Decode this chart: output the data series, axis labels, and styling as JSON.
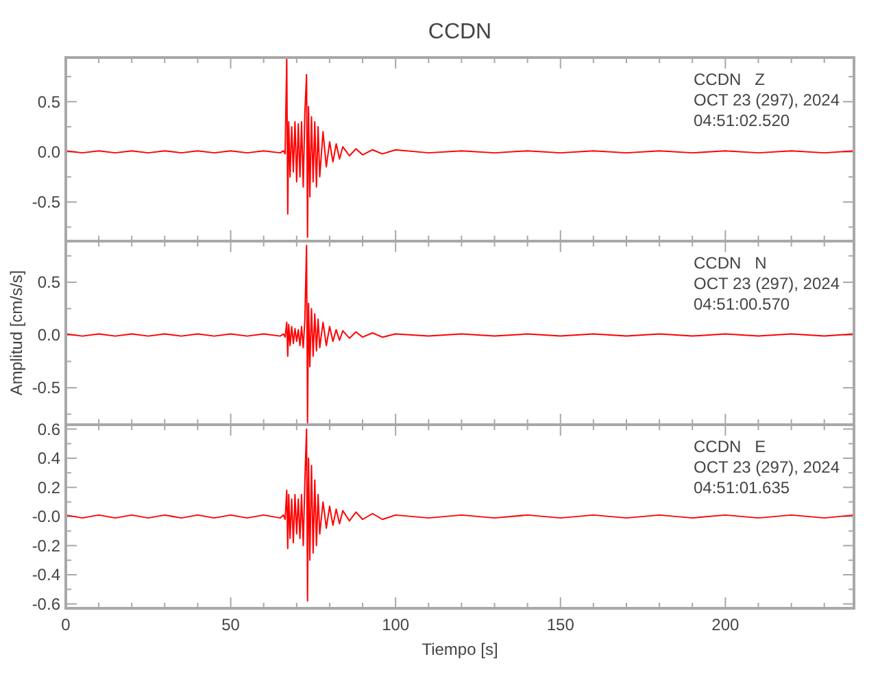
{
  "chart_data": [
    {
      "type": "line",
      "title": "CCDN",
      "annotations": [
        "CCDN   Z",
        "OCT 23 (297), 2024",
        "04:51:02.520"
      ],
      "tick_labels": "y",
      "xlim": [
        0,
        239
      ],
      "ylim": [
        -0.89,
        0.94
      ],
      "xticks": [
        0,
        {
          "value": 10,
          "label": null
        },
        {
          "value": 20,
          "label": null
        },
        {
          "value": 30,
          "label": null
        },
        {
          "value": 40,
          "label": null
        },
        50,
        {
          "value": 60,
          "label": null
        },
        {
          "value": 70,
          "label": null
        },
        {
          "value": 80,
          "label": null
        },
        {
          "value": 90,
          "label": null
        },
        100,
        {
          "value": 110,
          "label": null
        },
        {
          "value": 120,
          "label": null
        },
        {
          "value": 130,
          "label": null
        },
        {
          "value": 140,
          "label": null
        },
        150,
        {
          "value": 160,
          "label": null
        },
        {
          "value": 170,
          "label": null
        },
        {
          "value": 180,
          "label": null
        },
        {
          "value": 190,
          "label": null
        },
        200,
        {
          "value": 210,
          "label": null
        },
        {
          "value": 220,
          "label": null
        },
        {
          "value": 230,
          "label": null
        }
      ],
      "yticks": [
        {
          "value": -0.75,
          "label": null
        },
        -0.5,
        {
          "value": -0.25,
          "label": null
        },
        {
          "value": 0,
          "label": "0.0"
        },
        {
          "value": 0.25,
          "label": null
        },
        0.5,
        {
          "value": 0.75,
          "label": null
        }
      ],
      "x": [
        0,
        5,
        10,
        15,
        20,
        25,
        30,
        35,
        40,
        45,
        50,
        55,
        60,
        65,
        66,
        66.5,
        67,
        67.3,
        67.6,
        68,
        68.5,
        69,
        69.5,
        70,
        70.5,
        71,
        71.5,
        72,
        72.5,
        73,
        73.3,
        73.6,
        74,
        74.5,
        75,
        75.5,
        76,
        76.5,
        77,
        78,
        79,
        80,
        81,
        82,
        83,
        84,
        86,
        88,
        90,
        93,
        96,
        100,
        110,
        120,
        130,
        140,
        150,
        160,
        170,
        180,
        190,
        200,
        210,
        220,
        230,
        239
      ],
      "series": [
        {
          "color": "#ff0000",
          "values": [
            0.01,
            -0.01,
            0.01,
            -0.01,
            0.01,
            -0.01,
            0.01,
            -0.01,
            0.01,
            -0.01,
            0.01,
            -0.01,
            0.01,
            -0.01,
            0.01,
            -0.02,
            0.93,
            -0.62,
            0.3,
            -0.25,
            0.25,
            -0.2,
            0.3,
            -0.3,
            0.28,
            -0.25,
            0.3,
            -0.35,
            0.4,
            0.77,
            -0.85,
            0.45,
            -0.45,
            0.35,
            -0.3,
            0.3,
            -0.35,
            0.25,
            -0.25,
            0.2,
            -0.15,
            0.1,
            -0.1,
            0.08,
            -0.07,
            0.05,
            -0.04,
            0.03,
            -0.03,
            0.02,
            -0.02,
            0.02,
            -0.01,
            0.01,
            -0.01,
            0.01,
            -0.01,
            0.01,
            -0.01,
            0.01,
            -0.01,
            0.01,
            -0.01,
            0.01,
            -0.01,
            0.01
          ]
        }
      ]
    },
    {
      "type": "line",
      "ylabel": "Amplitud [cm/s/s]",
      "annotations": [
        "CCDN   N",
        "OCT 23 (297), 2024",
        "04:51:00.570"
      ],
      "tick_labels": "y",
      "xlim": [
        0,
        239
      ],
      "ylim": [
        -0.85,
        0.89
      ],
      "xticks": [
        0,
        {
          "value": 10,
          "label": null
        },
        {
          "value": 20,
          "label": null
        },
        {
          "value": 30,
          "label": null
        },
        {
          "value": 40,
          "label": null
        },
        50,
        {
          "value": 60,
          "label": null
        },
        {
          "value": 70,
          "label": null
        },
        {
          "value": 80,
          "label": null
        },
        {
          "value": 90,
          "label": null
        },
        100,
        {
          "value": 110,
          "label": null
        },
        {
          "value": 120,
          "label": null
        },
        {
          "value": 130,
          "label": null
        },
        {
          "value": 140,
          "label": null
        },
        150,
        {
          "value": 160,
          "label": null
        },
        {
          "value": 170,
          "label": null
        },
        {
          "value": 180,
          "label": null
        },
        {
          "value": 190,
          "label": null
        },
        200,
        {
          "value": 210,
          "label": null
        },
        {
          "value": 220,
          "label": null
        },
        {
          "value": 230,
          "label": null
        }
      ],
      "yticks": [
        {
          "value": -0.75,
          "label": null
        },
        -0.5,
        {
          "value": -0.25,
          "label": null
        },
        {
          "value": 0,
          "label": "0.0"
        },
        {
          "value": 0.25,
          "label": null
        },
        0.5,
        {
          "value": 0.75,
          "label": null
        }
      ],
      "x": [
        0,
        5,
        10,
        15,
        20,
        25,
        30,
        35,
        40,
        45,
        50,
        55,
        60,
        65,
        66,
        66.5,
        67,
        67.3,
        67.6,
        68,
        68.5,
        69,
        69.5,
        70,
        70.5,
        71,
        71.5,
        72,
        72.5,
        73,
        73.3,
        73.6,
        74,
        74.5,
        75,
        75.5,
        76,
        76.5,
        77,
        78,
        79,
        80,
        81,
        82,
        83,
        84,
        86,
        88,
        90,
        93,
        96,
        100,
        110,
        120,
        130,
        140,
        150,
        160,
        170,
        180,
        190,
        200,
        210,
        220,
        230,
        239
      ],
      "series": [
        {
          "color": "#ff0000",
          "values": [
            0.01,
            -0.01,
            0.01,
            -0.01,
            0.01,
            -0.01,
            0.01,
            -0.01,
            0.01,
            -0.01,
            0.01,
            -0.01,
            0.01,
            -0.01,
            0.01,
            -0.02,
            0.12,
            -0.2,
            0.1,
            -0.1,
            0.08,
            -0.08,
            0.06,
            -0.06,
            0.05,
            -0.1,
            0.08,
            -0.12,
            0.15,
            0.85,
            -0.83,
            0.3,
            -0.3,
            0.25,
            -0.2,
            0.2,
            -0.15,
            0.15,
            -0.12,
            0.12,
            -0.1,
            0.08,
            -0.06,
            0.05,
            -0.05,
            0.04,
            -0.03,
            0.03,
            -0.02,
            0.02,
            -0.02,
            0.01,
            -0.01,
            0.01,
            -0.01,
            0.01,
            -0.01,
            0.01,
            -0.01,
            0.01,
            -0.01,
            0.01,
            -0.01,
            0.01,
            -0.01,
            0.01
          ]
        }
      ]
    },
    {
      "type": "line",
      "xlabel": "Tiempo [s]",
      "annotations": [
        "CCDN   E",
        "OCT 23 (297), 2024",
        "04:51:01.635"
      ],
      "xlim": [
        0,
        239
      ],
      "ylim": [
        -0.63,
        0.63
      ],
      "xticks": [
        0,
        {
          "value": 10,
          "label": null
        },
        {
          "value": 20,
          "label": null
        },
        {
          "value": 30,
          "label": null
        },
        {
          "value": 40,
          "label": null
        },
        50,
        {
          "value": 60,
          "label": null
        },
        {
          "value": 70,
          "label": null
        },
        {
          "value": 80,
          "label": null
        },
        {
          "value": 90,
          "label": null
        },
        100,
        {
          "value": 110,
          "label": null
        },
        {
          "value": 120,
          "label": null
        },
        {
          "value": 130,
          "label": null
        },
        {
          "value": 140,
          "label": null
        },
        150,
        {
          "value": 160,
          "label": null
        },
        {
          "value": 170,
          "label": null
        },
        {
          "value": 180,
          "label": null
        },
        {
          "value": 190,
          "label": null
        },
        200,
        {
          "value": 210,
          "label": null
        },
        {
          "value": 220,
          "label": null
        },
        {
          "value": 230,
          "label": null
        }
      ],
      "yticks": [
        -0.6,
        {
          "value": -0.5,
          "label": null
        },
        -0.4,
        {
          "value": -0.3,
          "label": null
        },
        -0.2,
        {
          "value": -0.1,
          "label": null
        },
        {
          "value": 0,
          "label": "-0.0"
        },
        {
          "value": 0.1,
          "label": null
        },
        0.2,
        {
          "value": 0.3,
          "label": null
        },
        0.4,
        {
          "value": 0.5,
          "label": null
        },
        0.6
      ],
      "x": [
        0,
        5,
        10,
        15,
        20,
        25,
        30,
        35,
        40,
        45,
        50,
        55,
        60,
        65,
        66,
        66.5,
        67,
        67.3,
        67.6,
        68,
        68.5,
        69,
        69.5,
        70,
        70.5,
        71,
        71.5,
        72,
        72.5,
        73,
        73.3,
        73.6,
        74,
        74.5,
        75,
        75.5,
        76,
        76.5,
        77,
        78,
        79,
        80,
        81,
        82,
        83,
        84,
        86,
        88,
        90,
        93,
        96,
        100,
        110,
        120,
        130,
        140,
        150,
        160,
        170,
        180,
        190,
        200,
        210,
        220,
        230,
        239
      ],
      "series": [
        {
          "color": "#ff0000",
          "values": [
            0.01,
            -0.01,
            0.01,
            -0.01,
            0.01,
            -0.01,
            0.01,
            -0.01,
            0.01,
            -0.01,
            0.01,
            -0.01,
            0.01,
            -0.01,
            0.01,
            -0.02,
            0.18,
            -0.22,
            0.15,
            -0.15,
            0.12,
            -0.18,
            0.15,
            -0.12,
            0.12,
            -0.15,
            0.15,
            -0.2,
            0.25,
            0.6,
            -0.58,
            0.4,
            -0.3,
            0.35,
            -0.25,
            0.25,
            -0.2,
            0.15,
            -0.12,
            0.1,
            -0.08,
            0.07,
            -0.06,
            0.05,
            -0.05,
            0.04,
            -0.03,
            0.03,
            -0.02,
            0.02,
            -0.02,
            0.01,
            -0.01,
            0.01,
            -0.01,
            0.01,
            -0.01,
            0.01,
            -0.01,
            0.01,
            -0.01,
            0.01,
            -0.01,
            0.01,
            -0.01,
            0.01
          ]
        }
      ]
    }
  ]
}
